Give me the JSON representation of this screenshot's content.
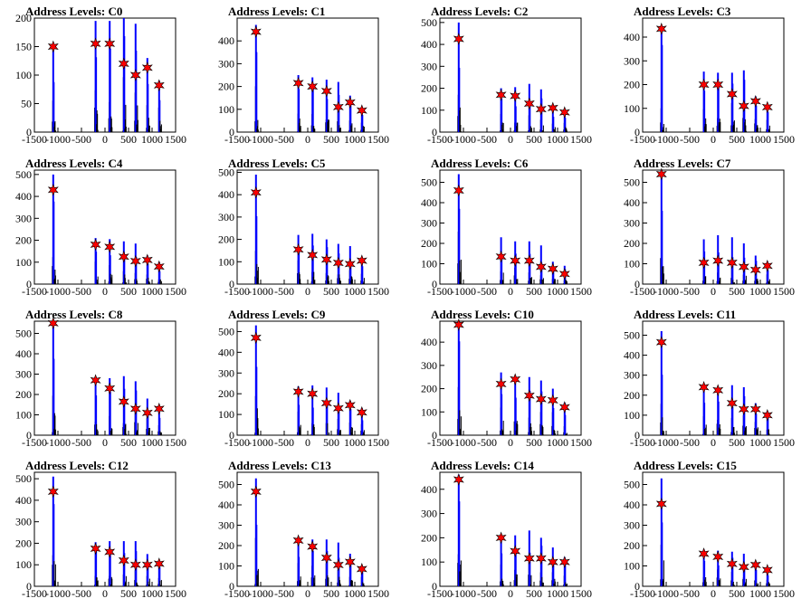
{
  "figure": {
    "background": "#ffffff",
    "accent_colors": {
      "histogram": "#0000ff",
      "marker": "#ff0000",
      "outline": "#000000"
    }
  },
  "chart_data": [
    {
      "type": "histogram",
      "title": "Address Levels: C0",
      "xlim": [
        -1500,
        1500
      ],
      "ylim": [
        0,
        200
      ],
      "x_ticks": [
        -1500,
        -1000,
        -500,
        0,
        500,
        1000,
        1500
      ],
      "x_tick_labels": [
        "-1500",
        "-1000",
        "-500",
        "0",
        "500",
        "1000",
        "1500"
      ],
      "y_ticks": [
        0,
        50,
        100,
        150,
        200
      ],
      "peaks_x": [
        -1100,
        -200,
        100,
        400,
        650,
        900,
        1150
      ],
      "peak_heights": [
        150,
        195,
        195,
        200,
        190,
        130,
        90
      ],
      "marker_values": [
        150,
        155,
        155,
        120,
        100,
        113,
        82
      ]
    },
    {
      "type": "histogram",
      "title": "Address Levels: C1",
      "xlim": [
        -1500,
        1500
      ],
      "ylim": [
        0,
        500
      ],
      "x_ticks": [
        -1500,
        -1000,
        -500,
        0,
        500,
        1000,
        1500
      ],
      "x_tick_labels": [
        "-1500",
        "-1000",
        "-500",
        "0",
        "500",
        "1000",
        "1500"
      ],
      "y_ticks": [
        0,
        100,
        200,
        300,
        400
      ],
      "peaks_x": [
        -1100,
        -200,
        100,
        400,
        650,
        900,
        1150
      ],
      "peak_heights": [
        470,
        250,
        240,
        230,
        220,
        160,
        110
      ],
      "marker_values": [
        440,
        215,
        200,
        180,
        110,
        130,
        95
      ]
    },
    {
      "type": "histogram",
      "title": "Address Levels: C2",
      "xlim": [
        -1500,
        1500
      ],
      "ylim": [
        0,
        520
      ],
      "x_ticks": [
        -1500,
        -1000,
        -500,
        0,
        500,
        1000,
        1500
      ],
      "x_tick_labels": [
        "-1500",
        "-1000",
        "-500",
        "0",
        "500",
        "1000",
        "1500"
      ],
      "y_ticks": [
        0,
        100,
        200,
        300,
        400,
        500
      ],
      "peaks_x": [
        -1100,
        -200,
        100,
        400,
        650,
        900,
        1150
      ],
      "peak_heights": [
        500,
        200,
        205,
        220,
        195,
        120,
        100
      ],
      "marker_values": [
        425,
        170,
        165,
        130,
        105,
        110,
        90
      ]
    },
    {
      "type": "histogram",
      "title": "Address Levels: C3",
      "xlim": [
        -1500,
        1500
      ],
      "ylim": [
        0,
        480
      ],
      "x_ticks": [
        -1500,
        -1000,
        -500,
        0,
        500,
        1000,
        1500
      ],
      "x_tick_labels": [
        "-1500",
        "-1000",
        "-500",
        "0",
        "500",
        "1000",
        "1500"
      ],
      "y_ticks": [
        0,
        100,
        200,
        300,
        400
      ],
      "peaks_x": [
        -1100,
        -200,
        100,
        400,
        650,
        900,
        1150
      ],
      "peak_heights": [
        450,
        255,
        250,
        250,
        260,
        150,
        110
      ],
      "marker_values": [
        435,
        200,
        200,
        160,
        110,
        130,
        105
      ]
    },
    {
      "type": "histogram",
      "title": "Address Levels: C4",
      "xlim": [
        -1500,
        1500
      ],
      "ylim": [
        0,
        520
      ],
      "x_ticks": [
        -1500,
        -1000,
        -500,
        0,
        500,
        1000,
        1500
      ],
      "x_tick_labels": [
        "-1500",
        "-1000",
        "-500",
        "0",
        "500",
        "1000",
        "1500"
      ],
      "y_ticks": [
        0,
        100,
        200,
        300,
        400,
        500
      ],
      "peaks_x": [
        -1100,
        -200,
        100,
        400,
        650,
        900,
        1150
      ],
      "peak_heights": [
        500,
        210,
        205,
        195,
        185,
        130,
        100
      ],
      "marker_values": [
        430,
        180,
        170,
        125,
        105,
        110,
        80
      ]
    },
    {
      "type": "histogram",
      "title": "Address Levels: C5",
      "xlim": [
        -1500,
        1500
      ],
      "ylim": [
        0,
        510
      ],
      "x_ticks": [
        -1500,
        -1000,
        -500,
        0,
        500,
        1000,
        1500
      ],
      "x_tick_labels": [
        "-1500",
        "-1000",
        "-500",
        "0",
        "500",
        "1000",
        "1500"
      ],
      "y_ticks": [
        0,
        100,
        200,
        300,
        400,
        500
      ],
      "peaks_x": [
        -1100,
        -200,
        100,
        400,
        650,
        900,
        1150
      ],
      "peak_heights": [
        490,
        220,
        225,
        200,
        180,
        170,
        120
      ],
      "marker_values": [
        410,
        155,
        130,
        110,
        95,
        90,
        105
      ]
    },
    {
      "type": "histogram",
      "title": "Address Levels: C6",
      "xlim": [
        -1500,
        1500
      ],
      "ylim": [
        0,
        560
      ],
      "x_ticks": [
        -1500,
        -1000,
        -500,
        0,
        500,
        1000,
        1500
      ],
      "x_tick_labels": [
        "-1500",
        "-1000",
        "-500",
        "0",
        "500",
        "1000",
        "1500"
      ],
      "y_ticks": [
        0,
        100,
        200,
        300,
        400,
        500
      ],
      "peaks_x": [
        -1100,
        -200,
        100,
        400,
        650,
        900,
        1150
      ],
      "peak_heights": [
        540,
        230,
        210,
        210,
        190,
        110,
        90
      ],
      "marker_values": [
        460,
        135,
        115,
        115,
        85,
        75,
        50
      ]
    },
    {
      "type": "histogram",
      "title": "Address Levels: C7",
      "xlim": [
        -1500,
        1500
      ],
      "ylim": [
        0,
        560
      ],
      "x_ticks": [
        -1500,
        -1000,
        -500,
        0,
        500,
        1000,
        1500
      ],
      "x_tick_labels": [
        "-1500",
        "-1000",
        "-500",
        "0",
        "500",
        "1000",
        "1500"
      ],
      "y_ticks": [
        0,
        100,
        200,
        300,
        400,
        500
      ],
      "peaks_x": [
        -1100,
        -200,
        100,
        400,
        650,
        900,
        1150
      ],
      "peak_heights": [
        560,
        220,
        240,
        230,
        200,
        140,
        110
      ],
      "marker_values": [
        540,
        105,
        115,
        105,
        85,
        70,
        90
      ]
    },
    {
      "type": "histogram",
      "title": "Address Levels: C8",
      "xlim": [
        -1500,
        1500
      ],
      "ylim": [
        0,
        560
      ],
      "x_ticks": [
        -1500,
        -1000,
        -500,
        0,
        500,
        1000,
        1500
      ],
      "x_tick_labels": [
        "-1500",
        "-1000",
        "-500",
        "0",
        "500",
        "1000",
        "1500"
      ],
      "y_ticks": [
        0,
        100,
        200,
        300,
        400,
        500
      ],
      "peaks_x": [
        -1100,
        -200,
        100,
        400,
        650,
        900,
        1150
      ],
      "peak_heights": [
        555,
        285,
        280,
        290,
        265,
        180,
        130
      ],
      "marker_values": [
        550,
        270,
        230,
        165,
        130,
        110,
        130
      ]
    },
    {
      "type": "histogram",
      "title": "Address Levels: C9",
      "xlim": [
        -1500,
        1500
      ],
      "ylim": [
        0,
        550
      ],
      "x_ticks": [
        -1500,
        -1000,
        -500,
        0,
        500,
        1000,
        1500
      ],
      "x_tick_labels": [
        "-1500",
        "-1000",
        "-500",
        "0",
        "500",
        "1000",
        "1500"
      ],
      "y_ticks": [
        0,
        100,
        200,
        300,
        400,
        500
      ],
      "peaks_x": [
        -1100,
        -200,
        100,
        400,
        650,
        900,
        1150
      ],
      "peak_heights": [
        530,
        235,
        240,
        230,
        205,
        165,
        130
      ],
      "marker_values": [
        470,
        210,
        200,
        155,
        130,
        145,
        110
      ]
    },
    {
      "type": "histogram",
      "title": "Address Levels: C10",
      "xlim": [
        -1500,
        1500
      ],
      "ylim": [
        0,
        490
      ],
      "x_ticks": [
        -1500,
        -1000,
        -500,
        0,
        500,
        1000,
        1500
      ],
      "x_tick_labels": [
        "-1500",
        "-1000",
        "-500",
        "0",
        "500",
        "1000",
        "1500"
      ],
      "y_ticks": [
        0,
        100,
        200,
        300,
        400
      ],
      "peaks_x": [
        -1100,
        -200,
        100,
        400,
        650,
        900,
        1150
      ],
      "peak_heights": [
        480,
        270,
        250,
        250,
        235,
        200,
        140
      ],
      "marker_values": [
        475,
        220,
        240,
        170,
        155,
        150,
        120
      ]
    },
    {
      "type": "histogram",
      "title": "Address Levels: C11",
      "xlim": [
        -1500,
        1500
      ],
      "ylim": [
        0,
        570
      ],
      "x_ticks": [
        -1500,
        -1000,
        -500,
        0,
        500,
        1000,
        1500
      ],
      "x_tick_labels": [
        "-1500",
        "-1000",
        "-500",
        "0",
        "500",
        "1000",
        "1500"
      ],
      "y_ticks": [
        0,
        100,
        200,
        300,
        400,
        500
      ],
      "peaks_x": [
        -1100,
        -200,
        100,
        400,
        650,
        900,
        1150
      ],
      "peak_heights": [
        520,
        250,
        240,
        250,
        240,
        160,
        120
      ],
      "marker_values": [
        465,
        240,
        225,
        160,
        130,
        130,
        100
      ]
    },
    {
      "type": "histogram",
      "title": "Address Levels: C12",
      "xlim": [
        -1500,
        1500
      ],
      "ylim": [
        0,
        530
      ],
      "x_ticks": [
        -1500,
        -1000,
        -500,
        0,
        500,
        1000,
        1500
      ],
      "x_tick_labels": [
        "-1500",
        "-1000",
        "-500",
        "0",
        "500",
        "1000",
        "1500"
      ],
      "y_ticks": [
        0,
        100,
        200,
        300,
        400,
        500
      ],
      "peaks_x": [
        -1100,
        -200,
        100,
        400,
        650,
        900,
        1150
      ],
      "peak_heights": [
        510,
        205,
        210,
        210,
        210,
        150,
        120
      ],
      "marker_values": [
        440,
        175,
        160,
        120,
        100,
        100,
        105
      ]
    },
    {
      "type": "histogram",
      "title": "Address Levels: C13",
      "xlim": [
        -1500,
        1500
      ],
      "ylim": [
        0,
        560
      ],
      "x_ticks": [
        -1500,
        -1000,
        -500,
        0,
        500,
        1000,
        1500
      ],
      "x_tick_labels": [
        "-1500",
        "-1000",
        "-500",
        "0",
        "500",
        "1000",
        "1500"
      ],
      "y_ticks": [
        0,
        100,
        200,
        300,
        400,
        500
      ],
      "peaks_x": [
        -1100,
        -200,
        100,
        400,
        650,
        900,
        1150
      ],
      "peak_heights": [
        530,
        240,
        230,
        230,
        215,
        160,
        100
      ],
      "marker_values": [
        465,
        225,
        195,
        140,
        105,
        120,
        85
      ]
    },
    {
      "type": "histogram",
      "title": "Address Levels: C14",
      "xlim": [
        -1500,
        1500
      ],
      "ylim": [
        0,
        470
      ],
      "x_ticks": [
        -1500,
        -1000,
        -500,
        0,
        500,
        1000,
        1500
      ],
      "x_tick_labels": [
        "-1500",
        "-1000",
        "-500",
        "0",
        "500",
        "1000",
        "1500"
      ],
      "y_ticks": [
        0,
        100,
        200,
        300,
        400
      ],
      "peaks_x": [
        -1100,
        -200,
        100,
        400,
        650,
        900,
        1150
      ],
      "peak_heights": [
        460,
        200,
        210,
        230,
        200,
        160,
        120
      ],
      "marker_values": [
        440,
        200,
        145,
        115,
        115,
        100,
        100
      ]
    },
    {
      "type": "histogram",
      "title": "Address Levels: C15",
      "xlim": [
        -1500,
        1500
      ],
      "ylim": [
        0,
        560
      ],
      "x_ticks": [
        -1500,
        -1000,
        -500,
        0,
        500,
        1000,
        1500
      ],
      "x_tick_labels": [
        "-1500",
        "-1000",
        "-500",
        "0",
        "500",
        "1000",
        "1500"
      ],
      "y_ticks": [
        0,
        100,
        200,
        300,
        400,
        500
      ],
      "peaks_x": [
        -1100,
        -200,
        100,
        400,
        650,
        900,
        1150
      ],
      "peak_heights": [
        530,
        180,
        175,
        170,
        160,
        120,
        90
      ],
      "marker_values": [
        405,
        160,
        145,
        110,
        95,
        105,
        80
      ]
    }
  ]
}
